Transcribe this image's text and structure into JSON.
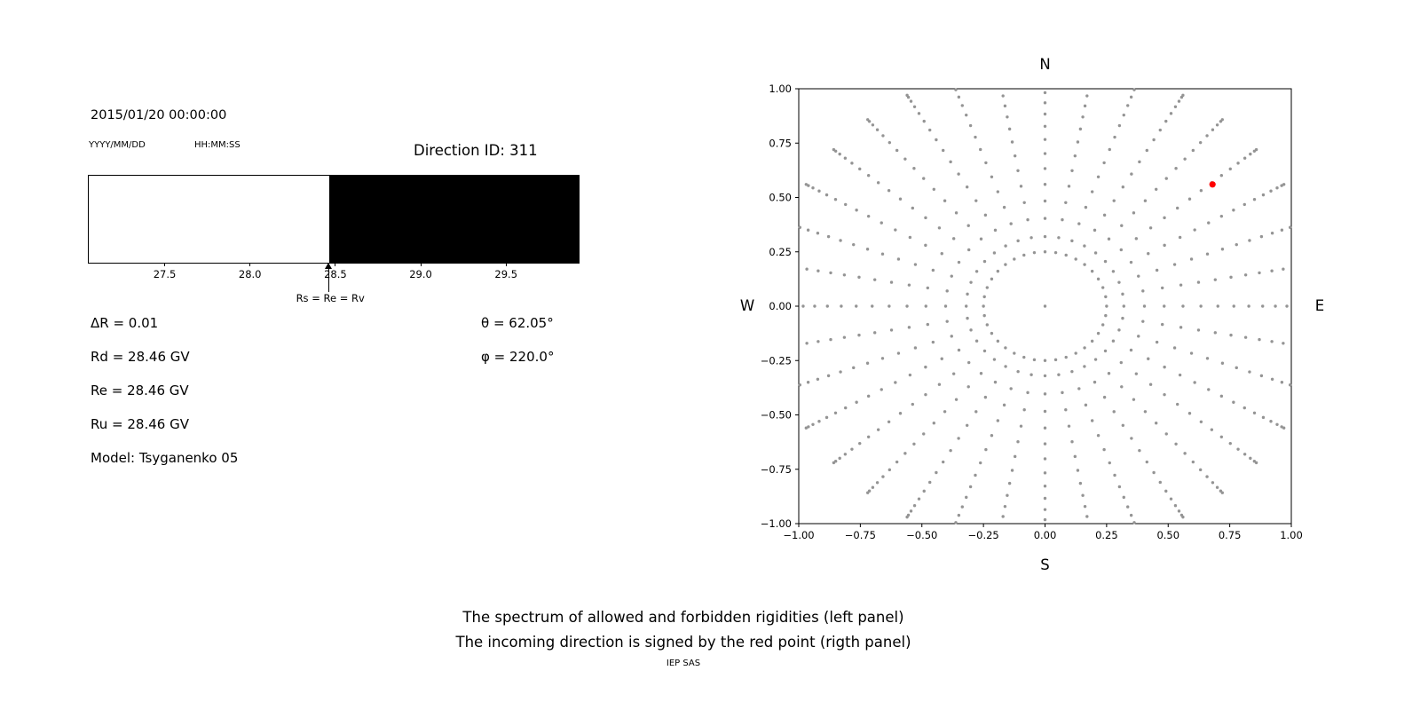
{
  "left_panel": {
    "datetime": "2015/01/20 00:00:00",
    "date_format_label": "YYYY/MM/DD",
    "time_format_label": "HH:MM:SS",
    "direction_id": "Direction ID: 311",
    "info_lines": [
      "ΔR = 0.01",
      "Rd = 28.46 GV",
      "Re = 28.46 GV",
      "Ru = 28.46 GV",
      "Model: Tsyganenko 05"
    ],
    "theta": "θ = 62.05°",
    "phi": "φ = 220.0°"
  },
  "caption": {
    "line1": "The spectrum of allowed and forbidden rigidities (left panel)",
    "line2": "The incoming direction is signed by the red point (rigth panel)",
    "credit": "IEP SAS"
  },
  "chart_data": [
    {
      "type": "bar",
      "title": "Spectrum of allowed and forbidden rigidities",
      "x_range": [
        27.05,
        29.92
      ],
      "x_ticks": [
        27.5,
        28.0,
        28.5,
        29.0,
        29.5
      ],
      "x_tick_labels": [
        "27.5",
        "28.0",
        "28.5",
        "29.0",
        "29.5"
      ],
      "segments": [
        {
          "from": 27.05,
          "to": 28.46,
          "color": "#ffffff",
          "meaning": "allowed rigidities"
        },
        {
          "from": 28.46,
          "to": 29.92,
          "color": "#000000",
          "meaning": "forbidden rigidities"
        }
      ],
      "marker": {
        "x": 28.46,
        "label": "Rs = Re = Rv"
      }
    },
    {
      "type": "scatter",
      "xlim": [
        -1,
        1
      ],
      "ylim": [
        -1,
        1
      ],
      "x_ticks": [
        -1.0,
        -0.75,
        -0.5,
        -0.25,
        0.0,
        0.25,
        0.5,
        0.75,
        1.0
      ],
      "x_tick_labels": [
        "−1.00",
        "−0.75",
        "−0.50",
        "−0.25",
        "0.00",
        "0.25",
        "0.50",
        "0.75",
        "1.00"
      ],
      "y_ticks": [
        -1.0,
        -0.75,
        -0.5,
        -0.25,
        0.0,
        0.25,
        0.5,
        0.75,
        1.0
      ],
      "y_tick_labels": [
        "−1.00",
        "−0.75",
        "−0.50",
        "−0.25",
        "0.00",
        "0.25",
        "0.50",
        "0.75",
        "1.00"
      ],
      "compass": {
        "top": "N",
        "bottom": "S",
        "left": "W",
        "right": "E"
      },
      "gray_points": {
        "color": "#949494",
        "generator": {
          "spoke_count": 36,
          "spoke_start_deg": 0,
          "points_per_spoke": 16,
          "r_start": 0.32,
          "r_end": 1.12,
          "density_exponent": 1.6,
          "clip": 1.005,
          "ring_radius": 0.25,
          "ring_points": 36,
          "center_point": true
        }
      },
      "red_point": {
        "x": 0.68,
        "y": 0.56,
        "color": "#ff0000"
      }
    }
  ]
}
